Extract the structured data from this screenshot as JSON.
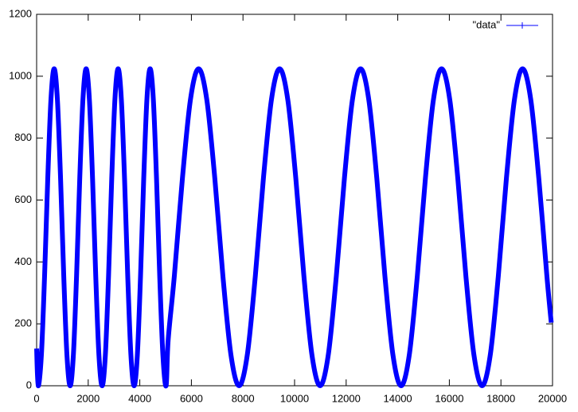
{
  "chart_data": {
    "type": "line",
    "x": [
      0,
      60,
      184,
      308,
      432,
      556,
      680,
      804,
      928,
      1052,
      1176,
      1300,
      1424,
      1548,
      1672,
      1796,
      1920,
      2044,
      2168,
      2292,
      2416,
      2540,
      2664,
      2788,
      2912,
      3036,
      3160,
      3284,
      3408,
      3532,
      3656,
      3780,
      3904,
      4028,
      4152,
      4276,
      4400,
      4524,
      4648,
      4772,
      4896,
      5020,
      5100,
      5338,
      5652,
      5966,
      6280,
      6594,
      6908,
      7222,
      7536,
      7850,
      8164,
      8478,
      8792,
      9106,
      9420,
      9734,
      10048,
      10362,
      10676,
      10990,
      11304,
      11618,
      11932,
      12246,
      12560,
      12874,
      13188,
      13502,
      13816,
      14130,
      14444,
      14758,
      15072,
      15386,
      15700,
      16014,
      16328,
      16642,
      16956,
      17270,
      17584,
      17898,
      18212,
      18526,
      18840,
      19154,
      19468,
      19782,
      19950
    ],
    "series": [
      {
        "name": "\"data\"",
        "color": "#0000ff",
        "values": [
          120,
          0,
          98,
          354,
          670,
          926,
          1024,
          926,
          670,
          354,
          98,
          0,
          98,
          354,
          670,
          926,
          1024,
          926,
          670,
          354,
          98,
          0,
          98,
          354,
          670,
          926,
          1024,
          926,
          670,
          354,
          98,
          0,
          98,
          354,
          670,
          926,
          1024,
          926,
          670,
          354,
          98,
          0,
          148,
          354,
          670,
          926,
          1024,
          926,
          670,
          354,
          98,
          0,
          98,
          354,
          670,
          926,
          1024,
          926,
          670,
          354,
          98,
          0,
          98,
          354,
          670,
          926,
          1024,
          926,
          670,
          354,
          98,
          0,
          98,
          354,
          670,
          926,
          1024,
          926,
          670,
          354,
          98,
          0,
          98,
          354,
          670,
          926,
          1024,
          926,
          670,
          354,
          204
        ]
      }
    ],
    "xlim": [
      0,
      20000
    ],
    "xticks": [
      0,
      2000,
      4000,
      6000,
      8000,
      10000,
      12000,
      14000,
      16000,
      18000,
      20000
    ],
    "ylim": [
      0,
      1200
    ],
    "yticks": [
      0,
      200,
      400,
      600,
      800,
      1000,
      1200
    ],
    "grid": false,
    "legend": "top-right"
  }
}
